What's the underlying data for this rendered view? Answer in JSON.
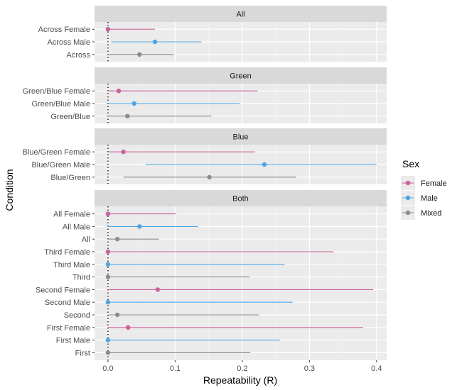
{
  "chart_data": {
    "type": "dot-interval",
    "xlabel": "Repeatability (R)",
    "ylabel": "Condition",
    "xlim": [
      -0.02,
      0.415
    ],
    "xticks": [
      0.0,
      0.1,
      0.2,
      0.3,
      0.4
    ],
    "xtick_labels": [
      "0.0",
      "0.1",
      "0.2",
      "0.3",
      "0.4"
    ],
    "reference_line": {
      "x": 0,
      "style": "dotted"
    },
    "grid": true,
    "legend": {
      "title": "Sex",
      "position": "right",
      "entries": [
        {
          "label": "Female",
          "color": "#c9629a"
        },
        {
          "label": "Male",
          "color": "#4da6e3"
        },
        {
          "label": "Mixed",
          "color": "#8c8c8c"
        }
      ]
    },
    "panels": [
      {
        "title": "All",
        "rows": [
          {
            "label": "Across Female",
            "sex": "Female",
            "estimate": 0.0,
            "lower": 0.0,
            "upper": 0.07
          },
          {
            "label": "Across Male",
            "sex": "Male",
            "estimate": 0.07,
            "lower": 0.005,
            "upper": 0.139
          },
          {
            "label": "Across",
            "sex": "Mixed",
            "estimate": 0.047,
            "lower": 0.0,
            "upper": 0.098
          }
        ]
      },
      {
        "title": "Green",
        "rows": [
          {
            "label": "Green/Blue Female",
            "sex": "Female",
            "estimate": 0.016,
            "lower": 0.0,
            "upper": 0.223
          },
          {
            "label": "Green/Blue Male",
            "sex": "Male",
            "estimate": 0.039,
            "lower": 0.0,
            "upper": 0.196
          },
          {
            "label": "Green/Blue",
            "sex": "Mixed",
            "estimate": 0.029,
            "lower": 0.0,
            "upper": 0.154
          }
        ]
      },
      {
        "title": "Blue",
        "rows": [
          {
            "label": "Blue/Green Female",
            "sex": "Female",
            "estimate": 0.023,
            "lower": 0.0,
            "upper": 0.219
          },
          {
            "label": "Blue/Green Male",
            "sex": "Male",
            "estimate": 0.233,
            "lower": 0.056,
            "upper": 0.4
          },
          {
            "label": "Blue/Green",
            "sex": "Mixed",
            "estimate": 0.151,
            "lower": 0.023,
            "upper": 0.28
          }
        ]
      },
      {
        "title": "Both",
        "rows": [
          {
            "label": "All Female",
            "sex": "Female",
            "estimate": 0.0,
            "lower": 0.0,
            "upper": 0.101
          },
          {
            "label": "All Male",
            "sex": "Male",
            "estimate": 0.047,
            "lower": 0.0,
            "upper": 0.134
          },
          {
            "label": "All",
            "sex": "Mixed",
            "estimate": 0.014,
            "lower": 0.0,
            "upper": 0.076
          },
          {
            "label": "Third Female",
            "sex": "Female",
            "estimate": 0.0,
            "lower": 0.0,
            "upper": 0.336
          },
          {
            "label": "Third Male",
            "sex": "Male",
            "estimate": 0.0,
            "lower": 0.0,
            "upper": 0.263
          },
          {
            "label": "Third",
            "sex": "Mixed",
            "estimate": 0.0,
            "lower": 0.0,
            "upper": 0.211
          },
          {
            "label": "Second Female",
            "sex": "Female",
            "estimate": 0.074,
            "lower": 0.0,
            "upper": 0.395
          },
          {
            "label": "Second Male",
            "sex": "Male",
            "estimate": 0.0,
            "lower": 0.0,
            "upper": 0.275
          },
          {
            "label": "Second",
            "sex": "Mixed",
            "estimate": 0.014,
            "lower": 0.0,
            "upper": 0.225
          },
          {
            "label": "First Female",
            "sex": "Female",
            "estimate": 0.03,
            "lower": 0.0,
            "upper": 0.38
          },
          {
            "label": "First Male",
            "sex": "Male",
            "estimate": 0.0,
            "lower": 0.0,
            "upper": 0.256
          },
          {
            "label": "First",
            "sex": "Mixed",
            "estimate": 0.0,
            "lower": 0.0,
            "upper": 0.212
          }
        ]
      }
    ]
  }
}
